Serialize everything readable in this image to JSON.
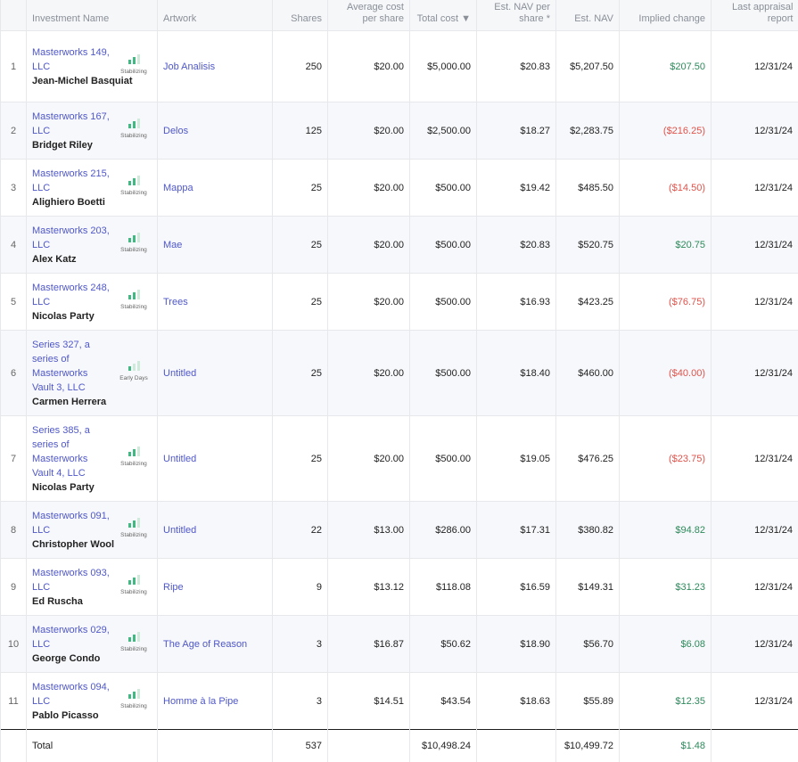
{
  "headers": {
    "investment_name": "Investment Name",
    "artwork": "Artwork",
    "shares": "Shares",
    "avg_cost_line1": "Average cost",
    "avg_cost_line2": "per share",
    "total_cost": "Total cost ▼",
    "est_nav_per_share_line1": "Est. NAV per",
    "est_nav_per_share_line2": "share *",
    "est_nav": "Est. NAV",
    "implied_change": "Implied change",
    "last_appraisal_line1": "Last appraisal",
    "last_appraisal_line2": "report"
  },
  "colors": {
    "link": "#4f57c9",
    "positive": "#2e8a5c",
    "negative": "#e0524a",
    "status_bar": "#42b883"
  },
  "rows": [
    {
      "index": "1",
      "investment": "Masterworks 149, LLC",
      "artist": "Jean-Michel Basquiat",
      "status": "Stabilizing",
      "artwork": "Job Analisis",
      "shares": "250",
      "avg_cost": "$20.00",
      "total_cost": "$5,000.00",
      "nav_per_share": "$20.83",
      "est_nav": "$5,207.50",
      "implied_change": "$207.50",
      "change_sign": "pos",
      "last_appraisal": "12/31/24"
    },
    {
      "index": "2",
      "investment": "Masterworks 167, LLC",
      "artist": "Bridget Riley",
      "status": "Stabilizing",
      "artwork": "Delos",
      "shares": "125",
      "avg_cost": "$20.00",
      "total_cost": "$2,500.00",
      "nav_per_share": "$18.27",
      "est_nav": "$2,283.75",
      "implied_change": "($216.25)",
      "change_sign": "neg",
      "last_appraisal": "12/31/24"
    },
    {
      "index": "3",
      "investment": "Masterworks 215, LLC",
      "artist": "Alighiero Boetti",
      "status": "Stabilizing",
      "artwork": "Mappa",
      "shares": "25",
      "avg_cost": "$20.00",
      "total_cost": "$500.00",
      "nav_per_share": "$19.42",
      "est_nav": "$485.50",
      "implied_change": "($14.50)",
      "change_sign": "neg",
      "last_appraisal": "12/31/24"
    },
    {
      "index": "4",
      "investment": "Masterworks 203, LLC",
      "artist": "Alex Katz",
      "status": "Stabilizing",
      "artwork": "Mae",
      "shares": "25",
      "avg_cost": "$20.00",
      "total_cost": "$500.00",
      "nav_per_share": "$20.83",
      "est_nav": "$520.75",
      "implied_change": "$20.75",
      "change_sign": "pos",
      "last_appraisal": "12/31/24"
    },
    {
      "index": "5",
      "investment": "Masterworks 248, LLC",
      "artist": "Nicolas Party",
      "status": "Stabilizing",
      "artwork": "Trees",
      "shares": "25",
      "avg_cost": "$20.00",
      "total_cost": "$500.00",
      "nav_per_share": "$16.93",
      "est_nav": "$423.25",
      "implied_change": "($76.75)",
      "change_sign": "neg",
      "last_appraisal": "12/31/24"
    },
    {
      "index": "6",
      "investment": "Series 327, a series of Masterworks Vault 3, LLC",
      "artist": "Carmen Herrera",
      "status": "Early Days",
      "artwork": "Untitled",
      "shares": "25",
      "avg_cost": "$20.00",
      "total_cost": "$500.00",
      "nav_per_share": "$18.40",
      "est_nav": "$460.00",
      "implied_change": "($40.00)",
      "change_sign": "neg",
      "last_appraisal": "12/31/24"
    },
    {
      "index": "7",
      "investment": "Series 385, a series of Masterworks Vault 4, LLC",
      "artist": "Nicolas Party",
      "status": "Stabilizing",
      "artwork": "Untitled",
      "shares": "25",
      "avg_cost": "$20.00",
      "total_cost": "$500.00",
      "nav_per_share": "$19.05",
      "est_nav": "$476.25",
      "implied_change": "($23.75)",
      "change_sign": "neg",
      "last_appraisal": "12/31/24"
    },
    {
      "index": "8",
      "investment": "Masterworks 091, LLC",
      "artist": "Christopher Wool",
      "status": "Stabilizing",
      "artwork": "Untitled",
      "shares": "22",
      "avg_cost": "$13.00",
      "total_cost": "$286.00",
      "nav_per_share": "$17.31",
      "est_nav": "$380.82",
      "implied_change": "$94.82",
      "change_sign": "pos",
      "last_appraisal": "12/31/24"
    },
    {
      "index": "9",
      "investment": "Masterworks 093, LLC",
      "artist": "Ed Ruscha",
      "status": "Stabilizing",
      "artwork": "Ripe",
      "shares": "9",
      "avg_cost": "$13.12",
      "total_cost": "$118.08",
      "nav_per_share": "$16.59",
      "est_nav": "$149.31",
      "implied_change": "$31.23",
      "change_sign": "pos",
      "last_appraisal": "12/31/24"
    },
    {
      "index": "10",
      "investment": "Masterworks 029, LLC",
      "artist": "George Condo",
      "status": "Stabilizing",
      "artwork": "The Age of Reason",
      "shares": "3",
      "avg_cost": "$16.87",
      "total_cost": "$50.62",
      "nav_per_share": "$18.90",
      "est_nav": "$56.70",
      "implied_change": "$6.08",
      "change_sign": "pos",
      "last_appraisal": "12/31/24"
    },
    {
      "index": "11",
      "investment": "Masterworks 094, LLC",
      "artist": "Pablo Picasso",
      "status": "Stabilizing",
      "artwork": "Homme à la Pipe",
      "shares": "3",
      "avg_cost": "$14.51",
      "total_cost": "$43.54",
      "nav_per_share": "$18.63",
      "est_nav": "$55.89",
      "implied_change": "$12.35",
      "change_sign": "pos",
      "last_appraisal": "12/31/24"
    }
  ],
  "total": {
    "label": "Total",
    "shares": "537",
    "total_cost": "$10,498.24",
    "est_nav": "$10,499.72",
    "implied_change": "$1.48"
  }
}
